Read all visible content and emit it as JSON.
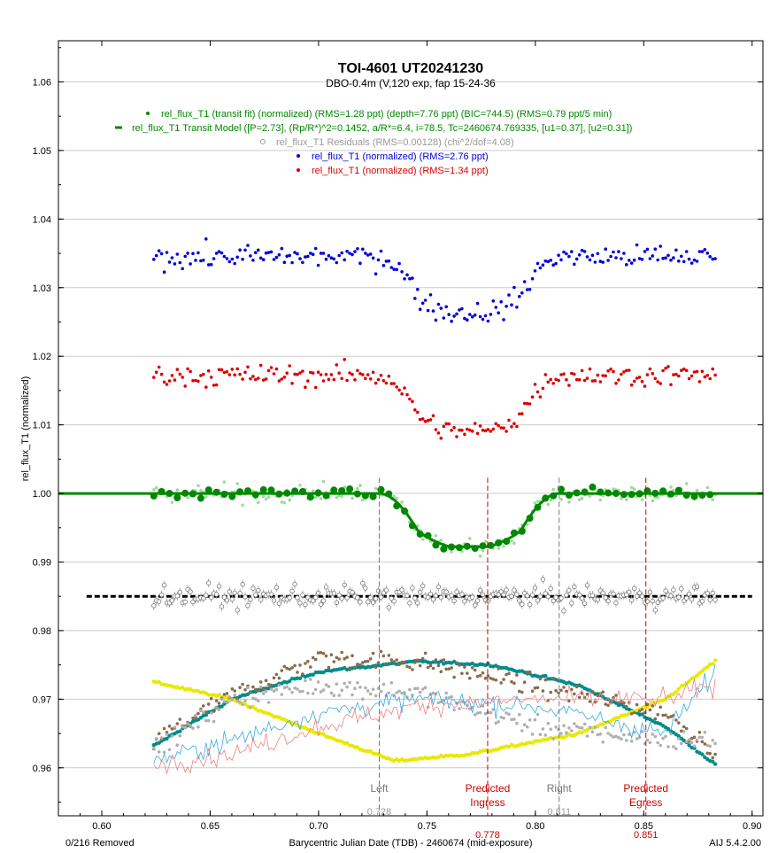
{
  "chart_data": {
    "type": "scatter",
    "title": "TOI-4601 UT20241230",
    "subtitle": "DBO-0.4m (V,120 exp, fap 15-24-36",
    "xlabel": "Barycentric Julian Date (TDB) - 2460674 (mid-exposure)",
    "ylabel": "rel_flux_T1 (normalized)",
    "xlim": [
      0.58,
      0.905
    ],
    "ylim": [
      0.953,
      1.066
    ],
    "x_ticks": [
      "0.60",
      "0.65",
      "0.70",
      "0.75",
      "0.80",
      "0.85",
      "0.90"
    ],
    "y_ticks": [
      "0.96",
      "0.97",
      "0.98",
      "0.99",
      "1.00",
      "1.01",
      "1.02",
      "1.03",
      "1.04",
      "1.05",
      "1.06"
    ],
    "grid": true,
    "legend_placement": "top-center",
    "legend": [
      {
        "label": "rel_flux_T1 (transit fit) (normalized) (RMS=1.28 ppt) (depth=7.76 ppt) (BIC=744.5) (RMS=0.79 ppt/5 min)",
        "color": "#008800",
        "marker": "dot"
      },
      {
        "label": "rel_flux_T1 Transit Model ([P=2.73], (Rp/R*)^2=0.1452, a/R*=6.4, i=78.5, Tc=2460674.769335, [u1=0.37], [u2=0.31])",
        "color": "#008800",
        "marker": "line"
      },
      {
        "label": "rel_flux_T1 Residuals (RMS=0.00128) (chi^2/dof=4.08)",
        "color": "#999999",
        "marker": "circle"
      },
      {
        "label": "rel_flux_T1 (normalized) (RMS=2.76 ppt)",
        "color": "#0000dd",
        "marker": "dot"
      },
      {
        "label": "rel_flux_T1 (normalized) (RMS=1.34 ppt)",
        "color": "#dd0000",
        "marker": "dot"
      }
    ],
    "markers": [
      {
        "name": "Left",
        "x": 0.728,
        "value_label": "0.728",
        "color": "#777777"
      },
      {
        "name": "Predicted Ingress",
        "x": 0.778,
        "value_label": "0.778",
        "color": "#cc0000"
      },
      {
        "name": "Right",
        "x": 0.811,
        "value_label": "0.811",
        "color": "#777777"
      },
      {
        "name": "Predicted Egress",
        "x": 0.851,
        "value_label": "0.851",
        "color": "#cc0000"
      }
    ],
    "x_range_data": [
      0.624,
      0.883
    ],
    "n_points": 216,
    "transit": {
      "tc": 0.769335,
      "x1": 0.728,
      "x2": 0.811,
      "depth": 0.00776,
      "ingress_duration": 0.018
    },
    "series": [
      {
        "name": "rel_flux_T1 (normalized) (RMS=2.76 ppt)",
        "color": "#0000dd",
        "baseline": 1.0345,
        "scatter": 0.0014
      },
      {
        "name": "rel_flux_T1 (normalized) (RMS=1.34 ppt)",
        "color": "#dd0000",
        "baseline": 1.0172,
        "scatter": 0.0013
      },
      {
        "name": "rel_flux_T1 (transit fit) (normalized) (RMS=1.28 ppt) (depth=7.76 ppt) (BIC=744.5) (RMS=0.79 ppt/5 min)",
        "color": "#008800",
        "baseline": 1.0,
        "scatter": 0.0007
      },
      {
        "name": "rel_flux_T1 Residuals (RMS=0.00128) (chi^2/dof=4.08)",
        "color": "#999999",
        "baseline": 0.985,
        "scatter": 0.0013
      },
      {
        "name": "rel_flux_T1 Transit Model ([P=2.73], (Rp/R*)^2=0.1452, a/R*=6.4, i=78.5, Tc=2460674.769335, [u1=0.37], [u2=0.31])",
        "color": "#008800",
        "baseline": 1.0
      }
    ],
    "aux_series": [
      {
        "color": "#008b8b",
        "points": [
          [
            0.624,
            0.9632
          ],
          [
            0.66,
            0.97
          ],
          [
            0.7,
            0.974
          ],
          [
            0.745,
            0.9755
          ],
          [
            0.78,
            0.975
          ],
          [
            0.82,
            0.972
          ],
          [
            0.86,
            0.966
          ],
          [
            0.883,
            0.9605
          ]
        ]
      },
      {
        "color": "#e8e800",
        "points": [
          [
            0.624,
            0.9725
          ],
          [
            0.66,
            0.97
          ],
          [
            0.7,
            0.965
          ],
          [
            0.735,
            0.961
          ],
          [
            0.77,
            0.962
          ],
          [
            0.82,
            0.965
          ],
          [
            0.86,
            0.97
          ],
          [
            0.883,
            0.9755
          ]
        ]
      },
      {
        "color": "#8b6b4a",
        "points": [
          [
            0.624,
            0.964
          ],
          [
            0.66,
            0.9705
          ],
          [
            0.7,
            0.976
          ],
          [
            0.745,
            0.9755
          ],
          [
            0.8,
            0.972
          ],
          [
            0.86,
            0.968
          ],
          [
            0.883,
            0.9625
          ]
        ]
      },
      {
        "color": "#b0b0b0",
        "points": [
          [
            0.624,
            0.9625
          ],
          [
            0.66,
            0.97
          ],
          [
            0.7,
            0.972
          ],
          [
            0.745,
            0.971
          ],
          [
            0.8,
            0.966
          ],
          [
            0.86,
            0.964
          ],
          [
            0.883,
            0.964
          ]
        ]
      },
      {
        "color": "#33aadd",
        "points": [
          [
            0.624,
            0.961
          ],
          [
            0.66,
            0.964
          ],
          [
            0.7,
            0.968
          ],
          [
            0.745,
            0.97
          ],
          [
            0.8,
            0.969
          ],
          [
            0.86,
            0.965
          ],
          [
            0.883,
            0.974
          ]
        ]
      },
      {
        "color": "#f08080",
        "points": [
          [
            0.624,
            0.9605
          ],
          [
            0.66,
            0.962
          ],
          [
            0.7,
            0.966
          ],
          [
            0.745,
            0.969
          ],
          [
            0.8,
            0.97
          ],
          [
            0.86,
            0.97
          ],
          [
            0.883,
            0.972
          ]
        ]
      }
    ],
    "footer_left": "0/216 Removed",
    "footer_right": "AIJ 5.4.2.00"
  }
}
